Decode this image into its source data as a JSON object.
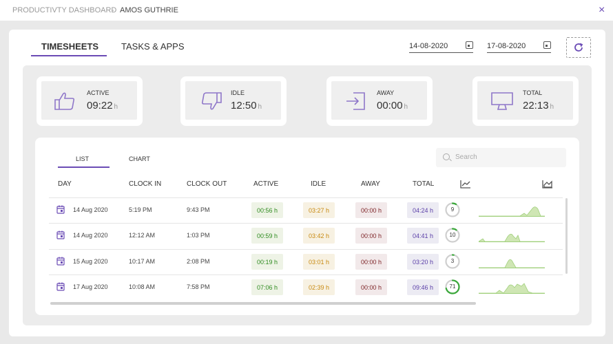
{
  "titlebar": {
    "app": "PRODUCTIVTY DASHBOARD",
    "separator": "-",
    "user": "AMOS GUTHRIE",
    "close": "×"
  },
  "tabs": [
    {
      "label": "TIMESHEETS",
      "active": true
    },
    {
      "label": "TASKS & APPS",
      "active": false
    }
  ],
  "dates": {
    "from": "14-08-2020",
    "to": "17-08-2020"
  },
  "cards": [
    {
      "label": "ACTIVE",
      "value": "09:22",
      "unit": "h",
      "icon": "thumbs-up-icon"
    },
    {
      "label": "IDLE",
      "value": "12:50",
      "unit": "h",
      "icon": "thumbs-down-icon"
    },
    {
      "label": "AWAY",
      "value": "00:00",
      "unit": "h",
      "icon": "sign-in-icon"
    },
    {
      "label": "TOTAL",
      "value": "22:13",
      "unit": "h",
      "icon": "monitor-icon"
    }
  ],
  "subtabs": [
    {
      "label": "LIST",
      "active": true
    },
    {
      "label": "CHART",
      "active": false
    }
  ],
  "search": {
    "placeholder": "Search"
  },
  "columns": [
    "DAY",
    "CLOCK IN",
    "CLOCK OUT",
    "ACTIVE",
    "IDLE",
    "AWAY",
    "TOTAL"
  ],
  "rows": [
    {
      "day": "14 Aug 2020",
      "clock_in": "5:19 PM",
      "clock_out": "9:43 PM",
      "active": "00:56 h",
      "idle": "03:27 h",
      "away": "00:00 h",
      "total": "04:24 h",
      "score": "9",
      "score_fraction": 0.09
    },
    {
      "day": "14 Aug 2020",
      "clock_in": "12:12 AM",
      "clock_out": "1:03 PM",
      "active": "00:59 h",
      "idle": "03:42 h",
      "away": "00:00 h",
      "total": "04:41 h",
      "score": "10",
      "score_fraction": 0.1
    },
    {
      "day": "15 Aug 2020",
      "clock_in": "10:17 AM",
      "clock_out": "2:08 PM",
      "active": "00:19 h",
      "idle": "03:01 h",
      "away": "00:00 h",
      "total": "03:20 h",
      "score": "3",
      "score_fraction": 0.03
    },
    {
      "day": "17 Aug 2020",
      "clock_in": "10:08 AM",
      "clock_out": "7:58 PM",
      "active": "07:06 h",
      "idle": "02:39 h",
      "away": "00:00 h",
      "total": "09:46 h",
      "score": "71",
      "score_fraction": 0.71
    }
  ],
  "colors": {
    "accent": "#6a4bb5",
    "active": "#2e8b1f",
    "idle": "#c88a12",
    "away": "#7a1e22",
    "total": "#5a3ea8",
    "ring_track": "#cfcfcf",
    "ring_fill": "#3aa83a"
  }
}
